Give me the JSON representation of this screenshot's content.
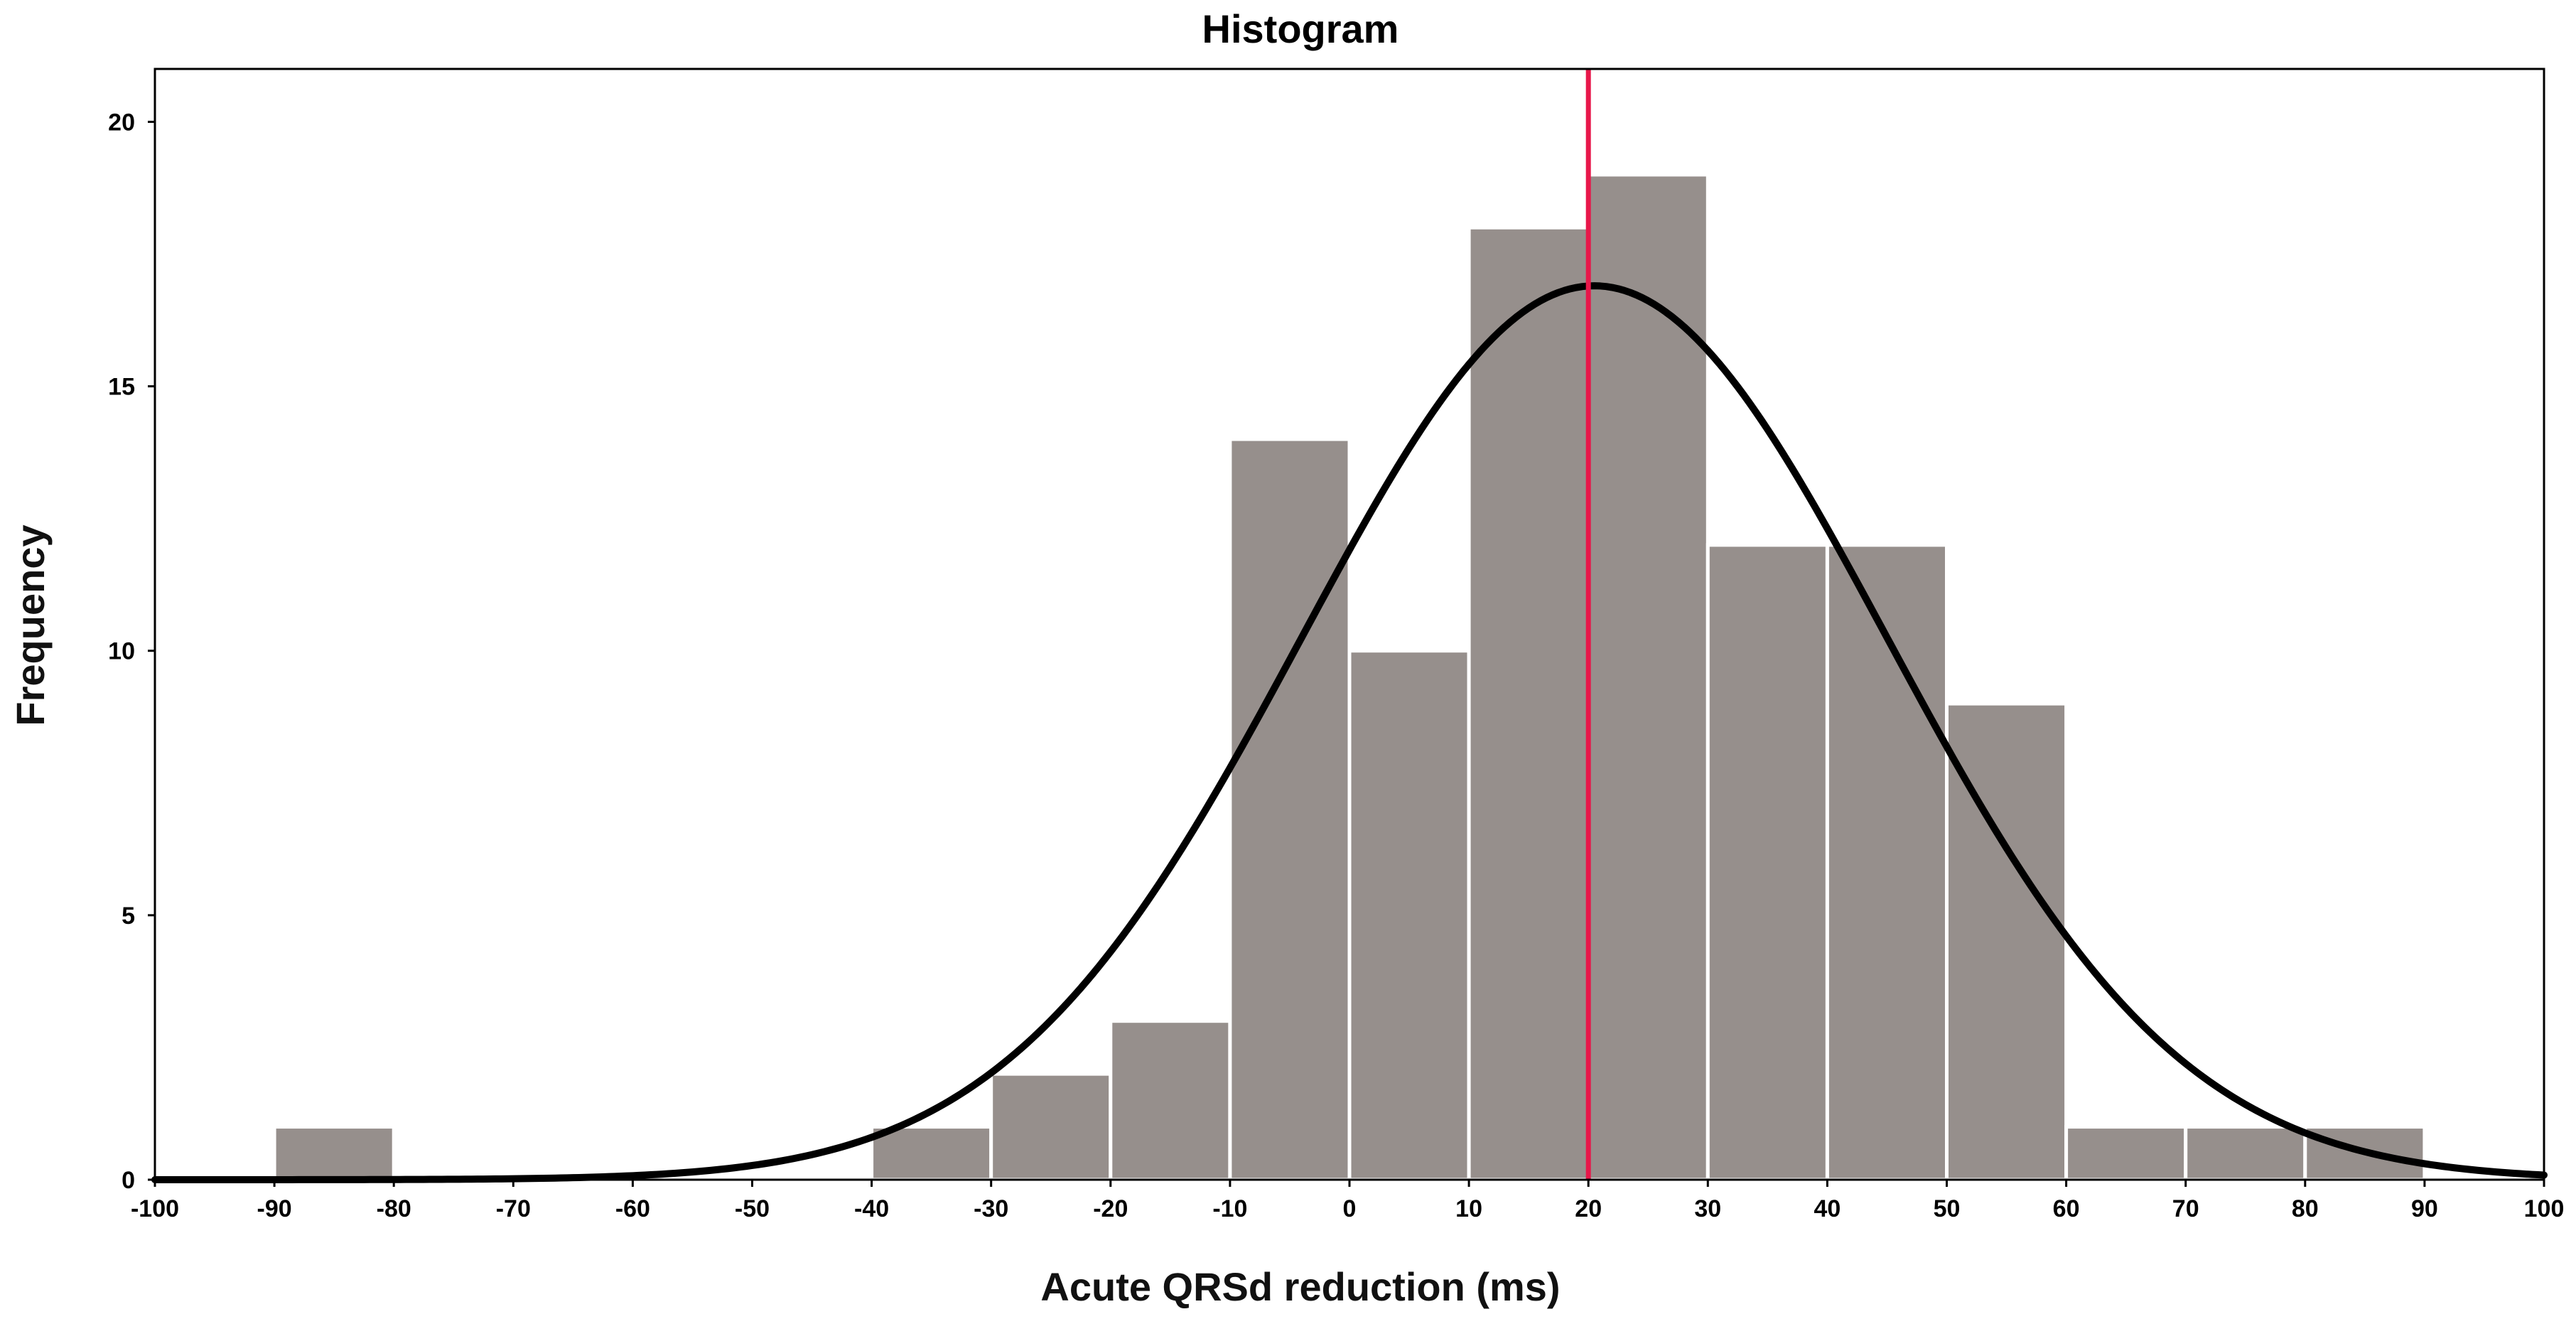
{
  "chart_data": {
    "type": "bar",
    "title": "Histogram",
    "xlabel": "Acute QRSd reduction (ms)",
    "ylabel": "Frequency",
    "xlim": [
      -100,
      100
    ],
    "ylim": [
      0,
      21
    ],
    "x_ticks": [
      -100,
      -90,
      -80,
      -70,
      -60,
      -50,
      -40,
      -30,
      -20,
      -10,
      0,
      10,
      20,
      30,
      40,
      50,
      60,
      70,
      80,
      90,
      100
    ],
    "y_ticks": [
      0,
      5,
      10,
      15,
      20
    ],
    "bins": [
      {
        "start": -90,
        "end": -80,
        "value": 1
      },
      {
        "start": -40,
        "end": -30,
        "value": 1
      },
      {
        "start": -30,
        "end": -20,
        "value": 2
      },
      {
        "start": -20,
        "end": -10,
        "value": 3
      },
      {
        "start": -10,
        "end": 0,
        "value": 14
      },
      {
        "start": 0,
        "end": 10,
        "value": 10
      },
      {
        "start": 10,
        "end": 20,
        "value": 18
      },
      {
        "start": 20,
        "end": 30,
        "value": 19
      },
      {
        "start": 30,
        "end": 40,
        "value": 12
      },
      {
        "start": 40,
        "end": 50,
        "value": 12
      },
      {
        "start": 50,
        "end": 60,
        "value": 9
      },
      {
        "start": 60,
        "end": 70,
        "value": 1
      },
      {
        "start": 70,
        "end": 80,
        "value": 1
      },
      {
        "start": 80,
        "end": 90,
        "value": 1
      }
    ],
    "normal_curve": {
      "mean": 20.5,
      "sd": 24.5,
      "peak": 16.9
    },
    "reference_line": {
      "x": 20
    },
    "grid": false,
    "colors": {
      "bar_fill": "#968f8c",
      "bar_stroke": "#ffffff",
      "curve": "#000000",
      "reference_line": "#e8174a",
      "frame": "#000000"
    }
  }
}
